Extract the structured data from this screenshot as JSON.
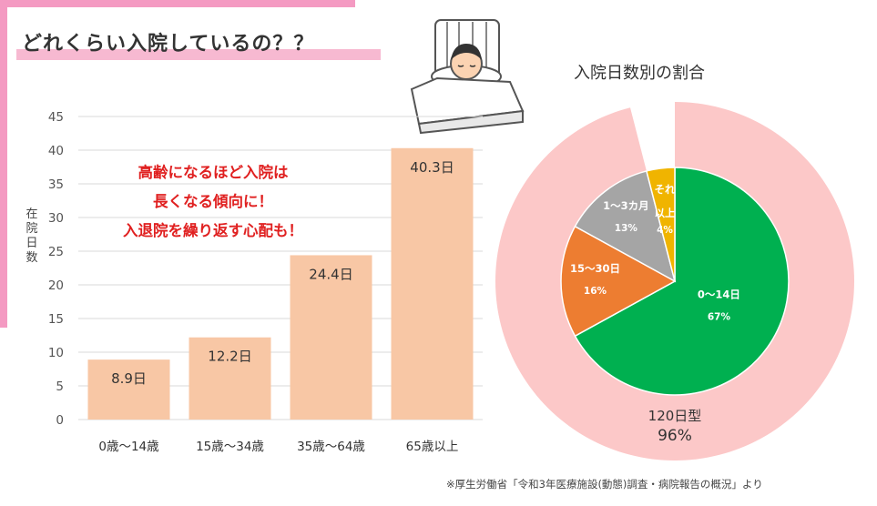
{
  "header": {
    "title": "どれくらい入院しているの？？"
  },
  "callout": {
    "line1": "高齢になるほど入院は",
    "line2": "長くなる傾向に！",
    "line3": "入退院を繰り返す心配も！"
  },
  "pie_title": "入院日数別の割合",
  "source_note": "※厚生労働省「令和3年医療施設(動態)調査・病院報告の概況」より",
  "chart_data": [
    {
      "type": "bar",
      "categories": [
        "0歳～14歳",
        "15歳～34歳",
        "35歳～64歳",
        "65歳以上"
      ],
      "values": [
        8.9,
        12.2,
        24.4,
        40.3
      ],
      "data_labels": [
        "8.9日",
        "12.2日",
        "24.4日",
        "40.3日"
      ],
      "ylabel": "在院日数",
      "ylim": [
        0,
        45
      ],
      "yticks": [
        0,
        5,
        10,
        15,
        20,
        25,
        30,
        35,
        40,
        45
      ],
      "color": "#f8c7a5",
      "grid": true
    },
    {
      "type": "pie",
      "outer_ring": {
        "label": "120日型",
        "value_label": "96%",
        "value": 96,
        "color": "#fcc8c8"
      },
      "slices": [
        {
          "label": "0～14日",
          "value_label": "67%",
          "value": 67,
          "color": "#00b050"
        },
        {
          "label": "15～30日",
          "value_label": "16%",
          "value": 16,
          "color": "#ed7d31"
        },
        {
          "label": "1～3カ月",
          "value_label": "13%",
          "value": 13,
          "color": "#a5a5a5"
        },
        {
          "label": "それ以上",
          "label_lines": [
            "それ",
            "以上"
          ],
          "value_label": "4%",
          "value": 4,
          "color": "#f0b400"
        }
      ]
    }
  ]
}
